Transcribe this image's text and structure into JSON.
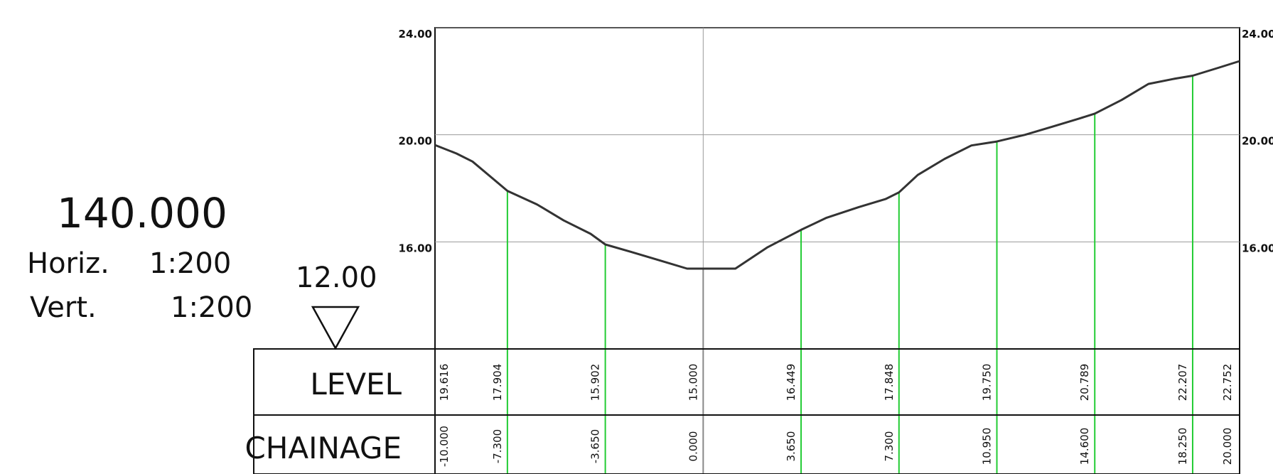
{
  "section": {
    "chainage_title": "140.000",
    "horiz_label": "Horiz.",
    "horiz_scale": "1:200",
    "vert_label": "Vert.",
    "vert_scale": "1:200",
    "datum_value": "12.00"
  },
  "table": {
    "level_label": "LEVEL",
    "chainage_label": "CHAINAGE"
  },
  "chart_data": {
    "type": "line",
    "y_tick_labels_left": [
      "24.00",
      "20.00",
      "16.00"
    ],
    "y_tick_labels_right": [
      "24.00",
      "20.00",
      "16.00"
    ],
    "y_ticks": [
      24,
      20,
      16
    ],
    "xlim": [
      -10,
      20
    ],
    "ylim": [
      12,
      24
    ],
    "profile": {
      "x": [
        -10,
        -9.2,
        -8.6,
        -7.3,
        -6.2,
        -5.2,
        -4.2,
        -3.65,
        -2.6,
        -1.6,
        -0.6,
        0,
        0.6,
        1.2,
        2.4,
        3.65,
        4.6,
        5.8,
        6.8,
        7.3,
        8.0,
        9.0,
        10.0,
        10.95,
        12.0,
        13.0,
        14.0,
        14.6,
        15.6,
        16.6,
        17.6,
        18.25,
        19.2,
        20.0
      ],
      "y": [
        19.616,
        19.3,
        19.0,
        17.904,
        17.4,
        16.8,
        16.3,
        15.902,
        15.6,
        15.3,
        15.0,
        15.0,
        15.0,
        15.0,
        15.8,
        16.449,
        16.9,
        17.3,
        17.6,
        17.848,
        18.5,
        19.1,
        19.6,
        19.75,
        20.0,
        20.3,
        20.6,
        20.789,
        21.3,
        21.9,
        22.1,
        22.207,
        22.5,
        22.752
      ]
    },
    "stations": [
      {
        "chainage": "-10.000",
        "level": "19.616",
        "x": -10,
        "y": 19.616
      },
      {
        "chainage": "-7.300",
        "level": "17.904",
        "x": -7.3,
        "y": 17.904
      },
      {
        "chainage": "-3.650",
        "level": "15.902",
        "x": -3.65,
        "y": 15.902
      },
      {
        "chainage": "0.000",
        "level": "15.000",
        "x": 0,
        "y": 15.0
      },
      {
        "chainage": "3.650",
        "level": "16.449",
        "x": 3.65,
        "y": 16.449
      },
      {
        "chainage": "7.300",
        "level": "17.848",
        "x": 7.3,
        "y": 17.848
      },
      {
        "chainage": "10.950",
        "level": "19.750",
        "x": 10.95,
        "y": 19.75
      },
      {
        "chainage": "14.600",
        "level": "20.789",
        "x": 14.6,
        "y": 20.789
      },
      {
        "chainage": "18.250",
        "level": "22.207",
        "x": 18.25,
        "y": 22.207
      },
      {
        "chainage": "20.000",
        "level": "22.752",
        "x": 20,
        "y": 22.752
      }
    ]
  }
}
